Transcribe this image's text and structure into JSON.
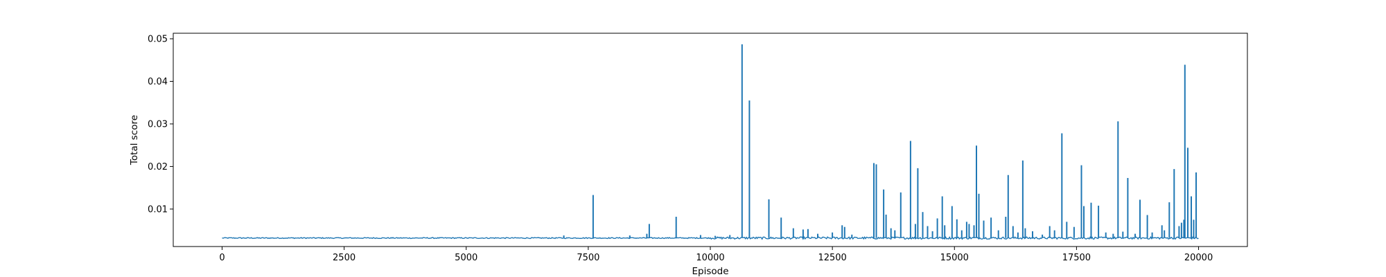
{
  "chart_data": {
    "type": "line",
    "title": "",
    "xlabel": "Episode",
    "ylabel": "Total score",
    "xlim": [
      -1000,
      21000
    ],
    "ylim": [
      0.0012,
      0.0513
    ],
    "xticks": [
      0,
      2500,
      5000,
      7500,
      10000,
      12500,
      15000,
      17500,
      20000
    ],
    "xtick_labels": [
      "0",
      "2500",
      "5000",
      "7500",
      "10000",
      "12500",
      "15000",
      "17500",
      "20000"
    ],
    "yticks": [
      0.01,
      0.02,
      0.03,
      0.04,
      0.05
    ],
    "ytick_labels": [
      "0.01",
      "0.02",
      "0.03",
      "0.04",
      "0.05"
    ],
    "grid": false,
    "colors": {
      "series": "#1f77b4",
      "axes": "#000000",
      "background": "#ffffff"
    },
    "series": [
      {
        "baseline": 0.0032,
        "x": [
          0,
          20000
        ],
        "spikes": [
          {
            "x": 7000,
            "y": 0.0038
          },
          {
            "x": 7600,
            "y": 0.0133
          },
          {
            "x": 8350,
            "y": 0.0038
          },
          {
            "x": 8700,
            "y": 0.0042
          },
          {
            "x": 8750,
            "y": 0.0065
          },
          {
            "x": 9300,
            "y": 0.0082
          },
          {
            "x": 9800,
            "y": 0.0039
          },
          {
            "x": 10100,
            "y": 0.0037
          },
          {
            "x": 10400,
            "y": 0.0039
          },
          {
            "x": 10650,
            "y": 0.0487
          },
          {
            "x": 10800,
            "y": 0.0355
          },
          {
            "x": 11200,
            "y": 0.0123
          },
          {
            "x": 11450,
            "y": 0.008
          },
          {
            "x": 11700,
            "y": 0.0055
          },
          {
            "x": 11900,
            "y": 0.0052
          },
          {
            "x": 12000,
            "y": 0.0053
          },
          {
            "x": 12200,
            "y": 0.0042
          },
          {
            "x": 12500,
            "y": 0.0045
          },
          {
            "x": 12700,
            "y": 0.0062
          },
          {
            "x": 12750,
            "y": 0.0058
          },
          {
            "x": 12900,
            "y": 0.004
          },
          {
            "x": 13350,
            "y": 0.0208
          },
          {
            "x": 13400,
            "y": 0.0205
          },
          {
            "x": 13550,
            "y": 0.0146
          },
          {
            "x": 13600,
            "y": 0.0087
          },
          {
            "x": 13700,
            "y": 0.0055
          },
          {
            "x": 13780,
            "y": 0.005
          },
          {
            "x": 13900,
            "y": 0.0139
          },
          {
            "x": 14100,
            "y": 0.026
          },
          {
            "x": 14200,
            "y": 0.0065
          },
          {
            "x": 14250,
            "y": 0.0196
          },
          {
            "x": 14350,
            "y": 0.0093
          },
          {
            "x": 14450,
            "y": 0.006
          },
          {
            "x": 14550,
            "y": 0.0048
          },
          {
            "x": 14650,
            "y": 0.0078
          },
          {
            "x": 14750,
            "y": 0.013
          },
          {
            "x": 14800,
            "y": 0.0062
          },
          {
            "x": 14950,
            "y": 0.0107
          },
          {
            "x": 15050,
            "y": 0.0076
          },
          {
            "x": 15150,
            "y": 0.005
          },
          {
            "x": 15250,
            "y": 0.007
          },
          {
            "x": 15300,
            "y": 0.0065
          },
          {
            "x": 15400,
            "y": 0.0062
          },
          {
            "x": 15450,
            "y": 0.0249
          },
          {
            "x": 15500,
            "y": 0.0136
          },
          {
            "x": 15600,
            "y": 0.0073
          },
          {
            "x": 15750,
            "y": 0.008
          },
          {
            "x": 15900,
            "y": 0.005
          },
          {
            "x": 16050,
            "y": 0.0082
          },
          {
            "x": 16100,
            "y": 0.018
          },
          {
            "x": 16200,
            "y": 0.006
          },
          {
            "x": 16300,
            "y": 0.0045
          },
          {
            "x": 16400,
            "y": 0.0214
          },
          {
            "x": 16450,
            "y": 0.0055
          },
          {
            "x": 16600,
            "y": 0.0048
          },
          {
            "x": 16800,
            "y": 0.004
          },
          {
            "x": 16950,
            "y": 0.006
          },
          {
            "x": 17050,
            "y": 0.005
          },
          {
            "x": 17200,
            "y": 0.0278
          },
          {
            "x": 17300,
            "y": 0.007
          },
          {
            "x": 17450,
            "y": 0.0058
          },
          {
            "x": 17600,
            "y": 0.0203
          },
          {
            "x": 17650,
            "y": 0.0107
          },
          {
            "x": 17800,
            "y": 0.0115
          },
          {
            "x": 17950,
            "y": 0.0108
          },
          {
            "x": 18100,
            "y": 0.0045
          },
          {
            "x": 18250,
            "y": 0.0042
          },
          {
            "x": 18350,
            "y": 0.0306
          },
          {
            "x": 18450,
            "y": 0.0047
          },
          {
            "x": 18550,
            "y": 0.0173
          },
          {
            "x": 18700,
            "y": 0.0042
          },
          {
            "x": 18800,
            "y": 0.0122
          },
          {
            "x": 18950,
            "y": 0.0086
          },
          {
            "x": 19050,
            "y": 0.0045
          },
          {
            "x": 19250,
            "y": 0.0062
          },
          {
            "x": 19300,
            "y": 0.005
          },
          {
            "x": 19400,
            "y": 0.0116
          },
          {
            "x": 19500,
            "y": 0.0194
          },
          {
            "x": 19600,
            "y": 0.006
          },
          {
            "x": 19650,
            "y": 0.0068
          },
          {
            "x": 19700,
            "y": 0.0075
          },
          {
            "x": 19720,
            "y": 0.0439
          },
          {
            "x": 19780,
            "y": 0.0244
          },
          {
            "x": 19850,
            "y": 0.013
          },
          {
            "x": 19900,
            "y": 0.0075
          },
          {
            "x": 19950,
            "y": 0.0186
          }
        ]
      }
    ]
  }
}
